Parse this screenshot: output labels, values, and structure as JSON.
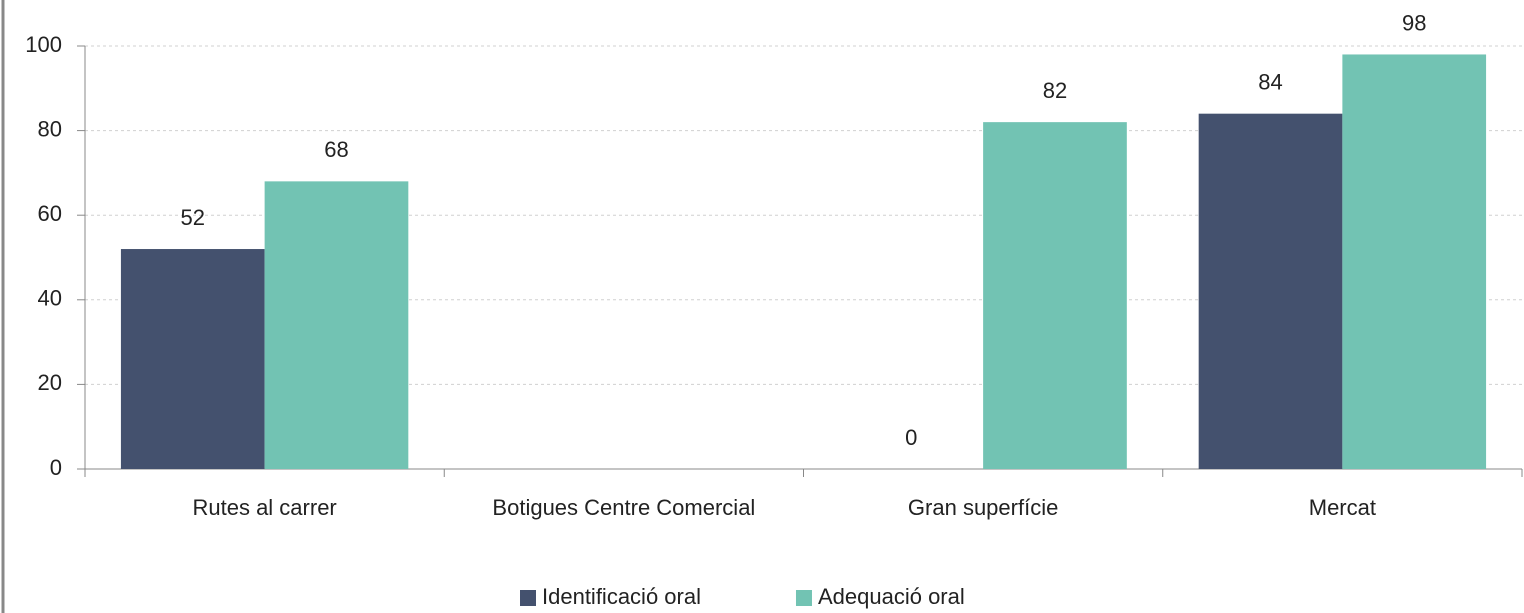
{
  "chart_data": {
    "type": "bar",
    "categories": [
      "Rutes al carrer",
      "Botigues Centre Comercial",
      "Gran superfície",
      "Mercat"
    ],
    "series": [
      {
        "name": "Identificació oral",
        "color": "#44516e",
        "values": [
          52,
          null,
          0,
          84
        ]
      },
      {
        "name": "Adequació oral",
        "color": "#72c3b3",
        "values": [
          68,
          null,
          82,
          98
        ]
      }
    ],
    "ylim": [
      0,
      100
    ],
    "yticks": [
      0,
      20,
      40,
      60,
      80,
      100
    ],
    "grid": true,
    "legend": "bottom"
  }
}
